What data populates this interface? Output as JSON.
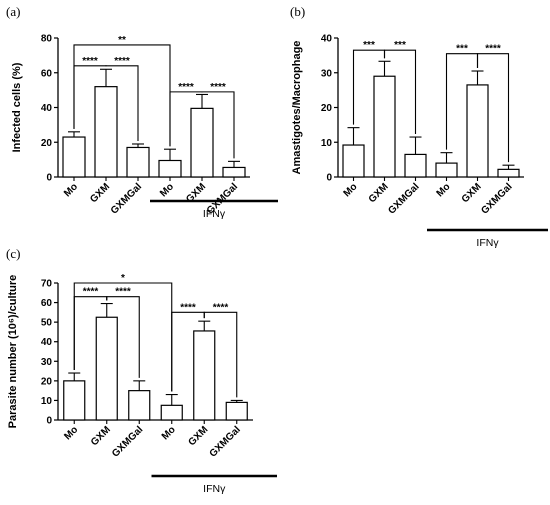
{
  "chart_data": [
    {
      "panel": "(a)",
      "type": "bar",
      "ylabel": "Infected cells (%)",
      "ylim": [
        0,
        80
      ],
      "yticks": [
        0,
        20,
        40,
        60,
        80
      ],
      "categories": [
        "Mo",
        "GXM",
        "GXMGal",
        "Mo",
        "GXM",
        "GXMGal"
      ],
      "values": [
        23,
        52,
        17,
        9.5,
        39.5,
        5.5
      ],
      "errors": [
        3,
        10,
        2,
        6.5,
        8,
        3.5
      ],
      "group_label": "IFNγ",
      "group_range": [
        3,
        5
      ],
      "significance": [
        {
          "from": 0,
          "to": 1,
          "label": "****",
          "y": 64
        },
        {
          "from": 1,
          "to": 2,
          "label": "****",
          "y": 64
        },
        {
          "from": 0,
          "to": 3,
          "label": "**",
          "y": 76
        },
        {
          "from": 3,
          "to": 4,
          "label": "****",
          "y": 49
        },
        {
          "from": 4,
          "to": 5,
          "label": "****",
          "y": 49
        }
      ]
    },
    {
      "panel": "(b)",
      "type": "bar",
      "ylabel": "Amastigotes/Macrophage",
      "ylim": [
        0,
        40
      ],
      "yticks": [
        0,
        10,
        20,
        30,
        40
      ],
      "categories": [
        "Mo",
        "GXM",
        "GXMGal",
        "Mo",
        "GXM",
        "GXMGal"
      ],
      "values": [
        9.2,
        29,
        6.5,
        4,
        26.5,
        2.2
      ],
      "errors": [
        5,
        4.3,
        5,
        3,
        4,
        1.2
      ],
      "group_label": "IFNγ",
      "group_range": [
        3,
        5
      ],
      "significance": [
        {
          "from": 0,
          "to": 1,
          "label": "***",
          "y": 36.5
        },
        {
          "from": 1,
          "to": 2,
          "label": "***",
          "y": 36.5
        },
        {
          "from": 3,
          "to": 4,
          "label": "***",
          "y": 35.5
        },
        {
          "from": 4,
          "to": 5,
          "label": "****",
          "y": 35.5
        }
      ]
    },
    {
      "panel": "(c)",
      "type": "bar",
      "ylabel": "Parasite number (10⁶)/culture",
      "ylim": [
        0,
        70
      ],
      "yticks": [
        0,
        10,
        20,
        30,
        40,
        50,
        60,
        70
      ],
      "categories": [
        "Mo",
        "GXM",
        "GXMGal",
        "Mo",
        "GXM",
        "GXMGal"
      ],
      "values": [
        20,
        52.5,
        15,
        7.5,
        45.5,
        9
      ],
      "errors": [
        4,
        7,
        5,
        5.5,
        5,
        1
      ],
      "group_label": "IFNγ",
      "group_range": [
        3,
        5
      ],
      "significance": [
        {
          "from": 0,
          "to": 1,
          "label": "****",
          "y": 63
        },
        {
          "from": 1,
          "to": 2,
          "label": "****",
          "y": 63
        },
        {
          "from": 0,
          "to": 3,
          "label": "*",
          "y": 70
        },
        {
          "from": 3,
          "to": 4,
          "label": "****",
          "y": 55
        },
        {
          "from": 4,
          "to": 5,
          "label": "****",
          "y": 55
        }
      ]
    }
  ]
}
